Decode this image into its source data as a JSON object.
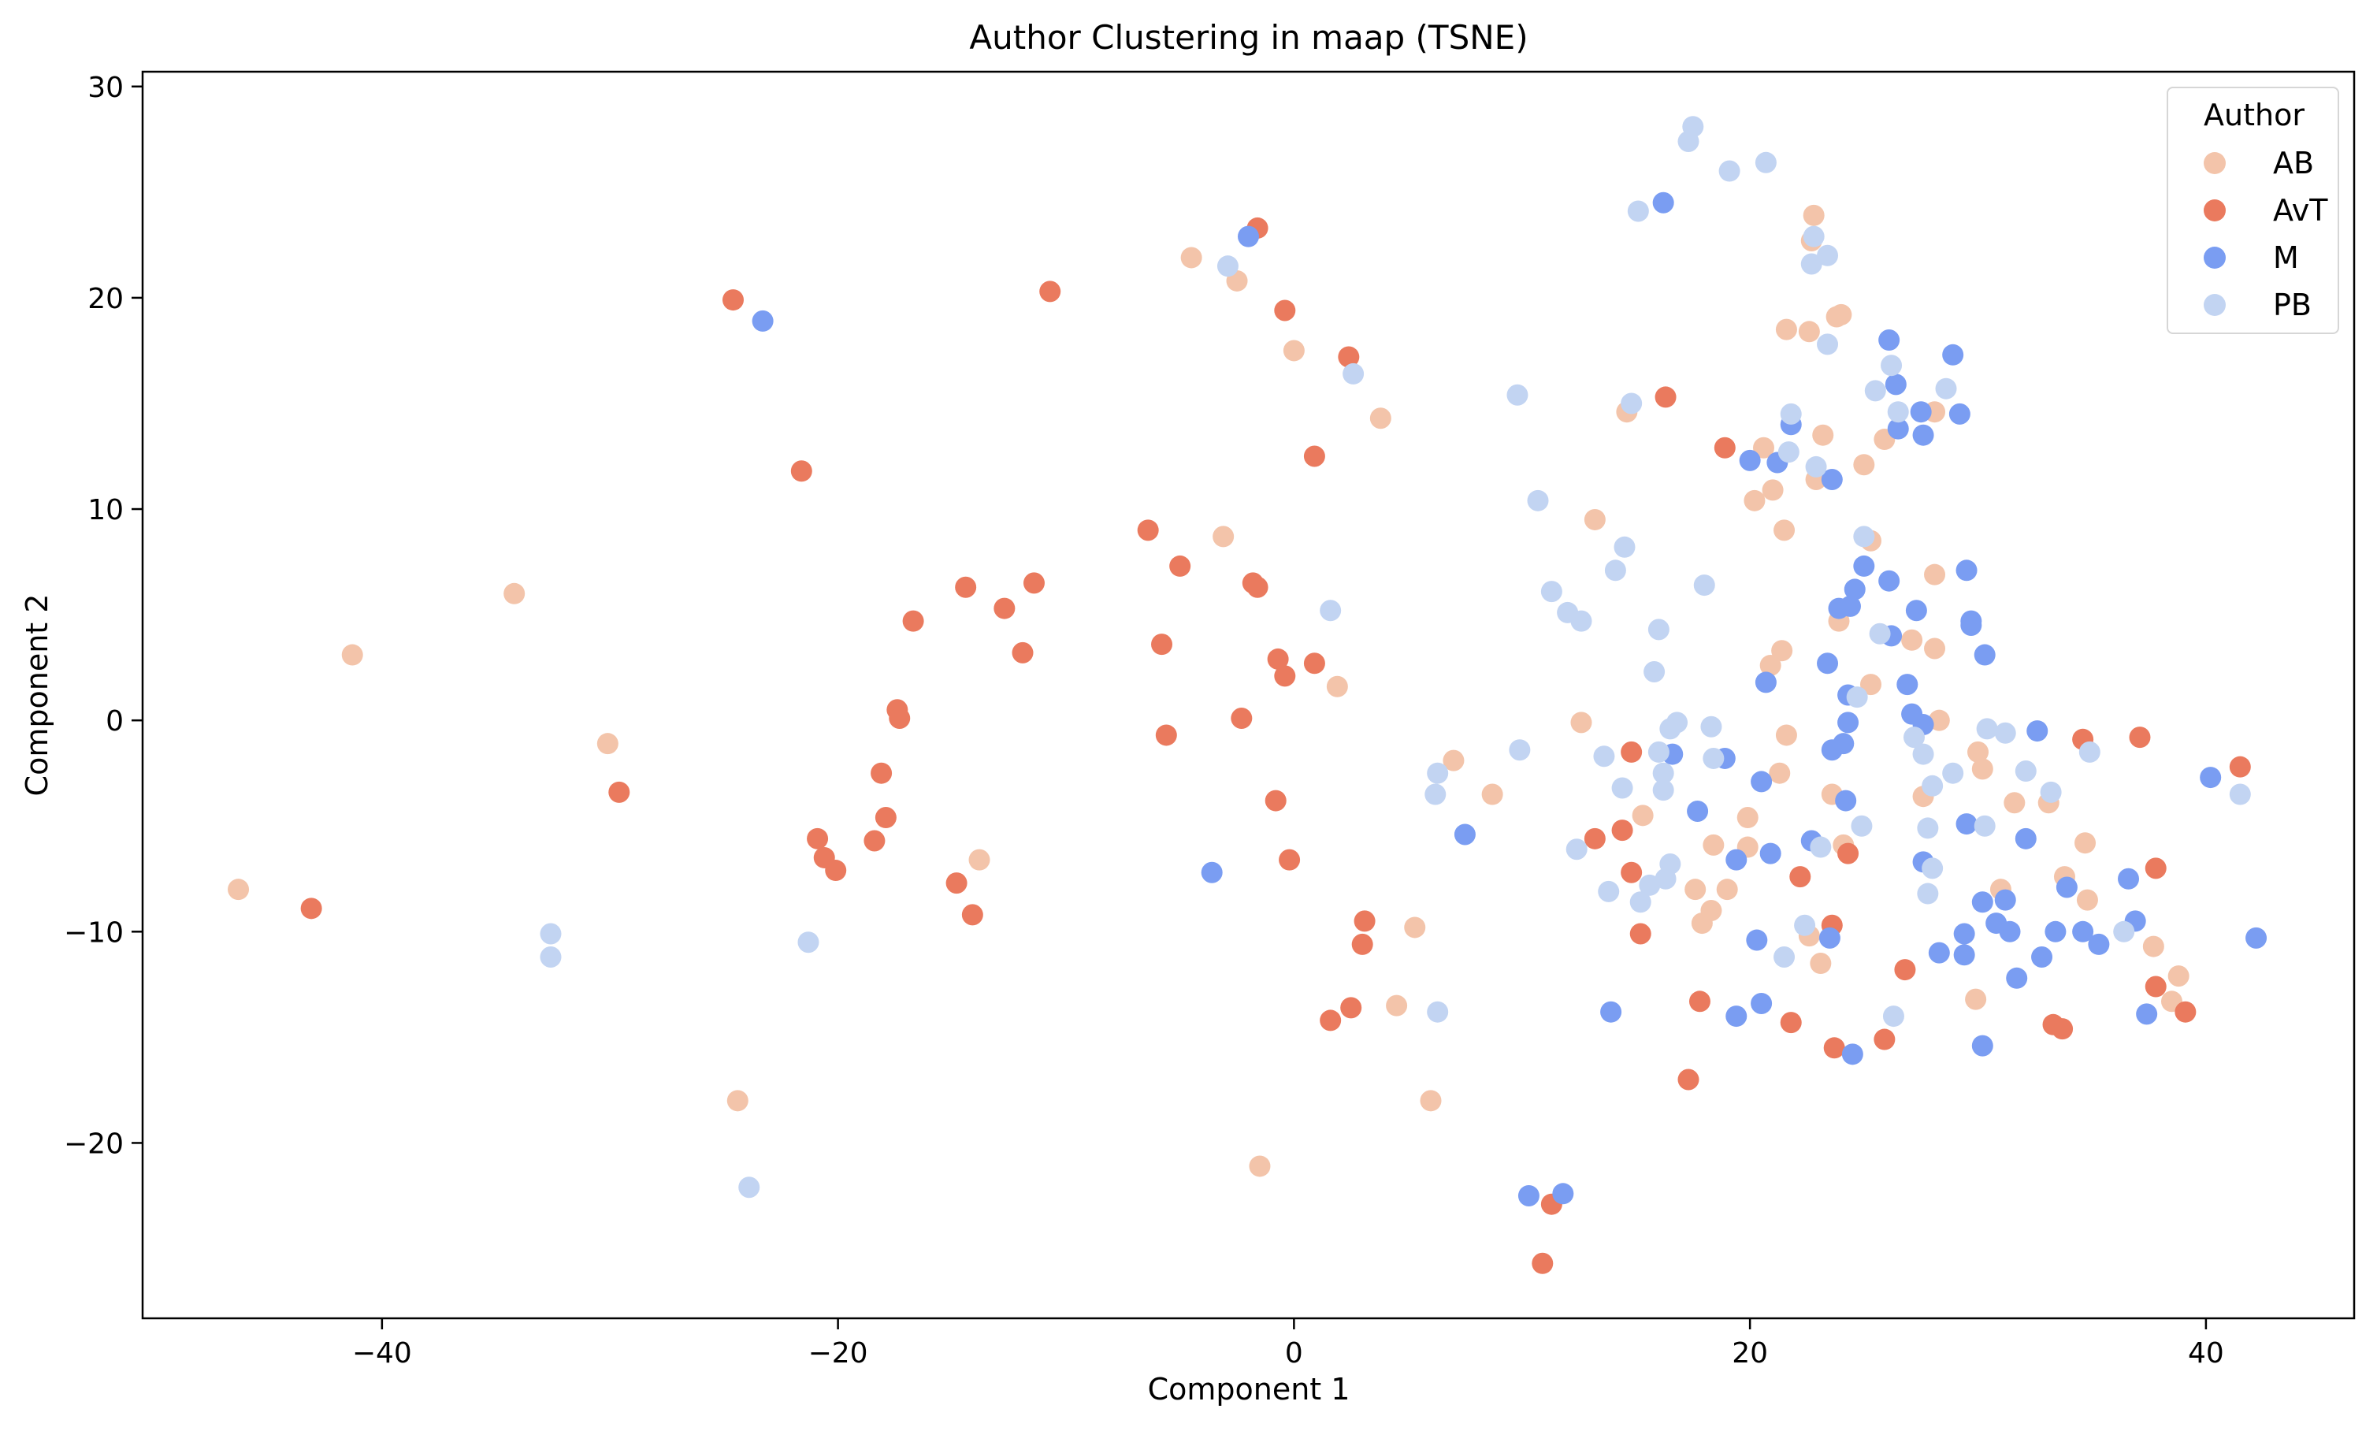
{
  "chart_data": {
    "type": "scatter",
    "title": "Author Clustering in maap (TSNE)",
    "xlabel": "Component 1",
    "ylabel": "Component 2",
    "xlim": [
      -50.5,
      46.5
    ],
    "ylim": [
      -28.3,
      30.7
    ],
    "xticks": [
      -40,
      -20,
      0,
      20,
      40
    ],
    "yticks": [
      -20,
      -10,
      0,
      10,
      20,
      30
    ],
    "grid": false,
    "legend": {
      "title": "Author",
      "position": "top-right"
    },
    "series": [
      {
        "name": "AB",
        "color": "#f3c4aa",
        "points": [
          [
            -46.3,
            -8
          ],
          [
            -41.3,
            3.1
          ],
          [
            -34.2,
            6
          ],
          [
            -30.1,
            -1.1
          ],
          [
            -24.4,
            -18
          ],
          [
            -13.8,
            -6.6
          ],
          [
            -4.5,
            21.9
          ],
          [
            -2.5,
            20.8
          ],
          [
            -3.1,
            8.7
          ],
          [
            0,
            17.5
          ],
          [
            1.9,
            1.6
          ],
          [
            3.8,
            14.3
          ],
          [
            -1.5,
            -21.1
          ],
          [
            4.5,
            -13.5
          ],
          [
            5.3,
            -9.8
          ],
          [
            6,
            -18
          ],
          [
            7,
            -1.9
          ],
          [
            8.7,
            -3.5
          ],
          [
            12.6,
            -0.1
          ],
          [
            13.2,
            9.5
          ],
          [
            14.6,
            14.6
          ],
          [
            15.3,
            -4.5
          ],
          [
            18.4,
            -5.9
          ],
          [
            17.6,
            -8
          ],
          [
            17.9,
            -9.6
          ],
          [
            18.3,
            -9
          ],
          [
            19,
            -8
          ],
          [
            19.9,
            -4.6
          ],
          [
            19.9,
            -6
          ],
          [
            20.2,
            10.4
          ],
          [
            20.6,
            12.9
          ],
          [
            20.9,
            2.6
          ],
          [
            21,
            10.9
          ],
          [
            21.3,
            -2.5
          ],
          [
            21.4,
            3.3
          ],
          [
            21.5,
            9
          ],
          [
            21.6,
            -0.7
          ],
          [
            21.6,
            18.5
          ],
          [
            22.6,
            18.4
          ],
          [
            22.7,
            22.7
          ],
          [
            22.8,
            23.9
          ],
          [
            22.9,
            11.4
          ],
          [
            22.6,
            -10.2
          ],
          [
            23.2,
            13.5
          ],
          [
            23.1,
            -11.5
          ],
          [
            23.8,
            19.1
          ],
          [
            24,
            19.2
          ],
          [
            23.9,
            4.7
          ],
          [
            23.6,
            -3.5
          ],
          [
            24.1,
            -5.9
          ],
          [
            25,
            12.1
          ],
          [
            25.3,
            8.5
          ],
          [
            25.3,
            1.7
          ],
          [
            25.9,
            13.3
          ],
          [
            27.1,
            3.8
          ],
          [
            27.6,
            -3.6
          ],
          [
            28.1,
            3.4
          ],
          [
            28.1,
            6.9
          ],
          [
            28.1,
            14.6
          ],
          [
            28.3,
            0
          ],
          [
            29.9,
            -13.2
          ],
          [
            30,
            -1.5
          ],
          [
            30.2,
            -2.3
          ],
          [
            31,
            -8
          ],
          [
            31.6,
            -3.9
          ],
          [
            33.1,
            -3.9
          ],
          [
            33.8,
            -7.4
          ],
          [
            34.7,
            -5.8
          ],
          [
            34.8,
            -8.5
          ],
          [
            37.7,
            -10.7
          ],
          [
            38.5,
            -13.3
          ],
          [
            38.8,
            -12.1
          ]
        ]
      },
      {
        "name": "AvT",
        "color": "#ea7a5e",
        "points": [
          [
            -43.1,
            -8.9
          ],
          [
            -29.6,
            -3.4
          ],
          [
            -24.6,
            19.9
          ],
          [
            -21.6,
            11.8
          ],
          [
            -20.9,
            -5.6
          ],
          [
            -20.6,
            -6.5
          ],
          [
            -20.1,
            -7.1
          ],
          [
            -18.4,
            -5.7
          ],
          [
            -18.1,
            -2.5
          ],
          [
            -17.9,
            -4.6
          ],
          [
            -17.4,
            0.5
          ],
          [
            -17.3,
            0.1
          ],
          [
            -16.7,
            4.7
          ],
          [
            -14.8,
            -7.7
          ],
          [
            -14.4,
            6.3
          ],
          [
            -14.1,
            -9.2
          ],
          [
            -12.7,
            5.3
          ],
          [
            -11.9,
            3.2
          ],
          [
            -11.4,
            6.5
          ],
          [
            -10.7,
            20.3
          ],
          [
            -6.4,
            9
          ],
          [
            -5.8,
            3.6
          ],
          [
            -5.6,
            -0.7
          ],
          [
            -5,
            7.3
          ],
          [
            -2.3,
            0.1
          ],
          [
            -1.8,
            6.5
          ],
          [
            -1.6,
            6.3
          ],
          [
            -1.6,
            23.3
          ],
          [
            -0.8,
            -3.8
          ],
          [
            -0.7,
            2.9
          ],
          [
            -0.4,
            2.1
          ],
          [
            -0.4,
            19.4
          ],
          [
            -0.2,
            -6.6
          ],
          [
            0.9,
            2.7
          ],
          [
            0.9,
            12.5
          ],
          [
            1.6,
            -14.2
          ],
          [
            2.4,
            17.2
          ],
          [
            2.5,
            -13.6
          ],
          [
            3.1,
            -9.5
          ],
          [
            3,
            -10.6
          ],
          [
            11.3,
            -22.9
          ],
          [
            10.9,
            -25.7
          ],
          [
            13.2,
            -5.6
          ],
          [
            14.4,
            -5.2
          ],
          [
            14.8,
            -1.5
          ],
          [
            14.8,
            -7.2
          ],
          [
            15.2,
            -10.1
          ],
          [
            16.3,
            15.3
          ],
          [
            17.3,
            -17
          ],
          [
            17.8,
            -13.3
          ],
          [
            18.9,
            12.9
          ],
          [
            21.8,
            -14.3
          ],
          [
            22.2,
            -7.4
          ],
          [
            23.6,
            -9.7
          ],
          [
            23.7,
            -15.5
          ],
          [
            24.3,
            -6.3
          ],
          [
            25.9,
            -15.1
          ],
          [
            26.8,
            -11.8
          ],
          [
            33.3,
            -14.4
          ],
          [
            33.7,
            -14.6
          ],
          [
            34.6,
            -0.9
          ],
          [
            37.1,
            -0.8
          ],
          [
            37.8,
            -12.6
          ],
          [
            37.8,
            -7
          ],
          [
            39.1,
            -13.8
          ],
          [
            41.5,
            -2.2
          ]
        ]
      },
      {
        "name": "M",
        "color": "#7a9df2",
        "points": [
          [
            -23.3,
            18.9
          ],
          [
            -2,
            22.9
          ],
          [
            -3.6,
            -7.2
          ],
          [
            7.5,
            -5.4
          ],
          [
            10.3,
            -22.5
          ],
          [
            11.8,
            -22.4
          ],
          [
            13.9,
            -13.8
          ],
          [
            16.2,
            24.5
          ],
          [
            16.6,
            -1.6
          ],
          [
            17.7,
            -4.3
          ],
          [
            18.9,
            -1.8
          ],
          [
            19.4,
            -6.6
          ],
          [
            19.4,
            -14
          ],
          [
            20,
            12.3
          ],
          [
            20.3,
            -10.4
          ],
          [
            20.5,
            -13.4
          ],
          [
            20.5,
            -2.9
          ],
          [
            20.7,
            1.8
          ],
          [
            20.9,
            -6.3
          ],
          [
            21.2,
            12.2
          ],
          [
            21.8,
            14
          ],
          [
            22.7,
            -5.7
          ],
          [
            23.4,
            2.7
          ],
          [
            23.5,
            -10.3
          ],
          [
            23.6,
            11.4
          ],
          [
            23.6,
            -1.4
          ],
          [
            23.9,
            5.3
          ],
          [
            24.1,
            -1.1
          ],
          [
            24.2,
            -3.8
          ],
          [
            24.3,
            1.2
          ],
          [
            24.3,
            -0.1
          ],
          [
            24.4,
            5.4
          ],
          [
            24.6,
            6.2
          ],
          [
            24.5,
            -15.8
          ],
          [
            25,
            7.3
          ],
          [
            26.1,
            18
          ],
          [
            26.1,
            6.6
          ],
          [
            26.2,
            4
          ],
          [
            26.4,
            15.9
          ],
          [
            26.5,
            13.8
          ],
          [
            26.9,
            1.7
          ],
          [
            27.1,
            0.3
          ],
          [
            27.3,
            5.2
          ],
          [
            27.5,
            14.6
          ],
          [
            27.6,
            13.5
          ],
          [
            27.6,
            -0.2
          ],
          [
            27.6,
            -6.7
          ],
          [
            28.3,
            -11
          ],
          [
            28.9,
            17.3
          ],
          [
            29.2,
            14.5
          ],
          [
            29.4,
            -11.1
          ],
          [
            29.5,
            7.1
          ],
          [
            29.5,
            -4.9
          ],
          [
            29.7,
            4.7
          ],
          [
            29.7,
            4.5
          ],
          [
            29.4,
            -10.1
          ],
          [
            30.2,
            -8.6
          ],
          [
            30.2,
            -15.4
          ],
          [
            30.3,
            3.1
          ],
          [
            30.8,
            -9.6
          ],
          [
            31.2,
            -8.5
          ],
          [
            31.4,
            -10
          ],
          [
            31.7,
            -12.2
          ],
          [
            32.1,
            -5.6
          ],
          [
            32.6,
            -0.5
          ],
          [
            32.8,
            -11.2
          ],
          [
            33.4,
            -10
          ],
          [
            33.9,
            -7.9
          ],
          [
            34.6,
            -10
          ],
          [
            35.3,
            -10.6
          ],
          [
            36.6,
            -7.5
          ],
          [
            36.9,
            -9.5
          ],
          [
            37.4,
            -13.9
          ],
          [
            40.2,
            -2.7
          ],
          [
            42.2,
            -10.3
          ]
        ]
      },
      {
        "name": "PB",
        "color": "#c2d4f2",
        "points": [
          [
            -32.6,
            -10.1
          ],
          [
            -32.6,
            -11.2
          ],
          [
            -21.3,
            -10.5
          ],
          [
            -23.9,
            -22.1
          ],
          [
            -2.9,
            21.5
          ],
          [
            1.6,
            5.2
          ],
          [
            2.6,
            16.4
          ],
          [
            6.2,
            -3.5
          ],
          [
            6.3,
            -2.5
          ],
          [
            6.3,
            -13.8
          ],
          [
            9.8,
            15.4
          ],
          [
            9.9,
            -1.4
          ],
          [
            10.7,
            10.4
          ],
          [
            11.3,
            6.1
          ],
          [
            12,
            5.1
          ],
          [
            12.6,
            4.7
          ],
          [
            12.4,
            -6.1
          ],
          [
            13.6,
            -1.7
          ],
          [
            13.8,
            -8.1
          ],
          [
            14.1,
            7.1
          ],
          [
            14.4,
            -3.2
          ],
          [
            14.5,
            8.2
          ],
          [
            14.8,
            15
          ],
          [
            15.1,
            24.1
          ],
          [
            15.2,
            -8.6
          ],
          [
            15.6,
            -7.8
          ],
          [
            15.8,
            2.3
          ],
          [
            16,
            4.3
          ],
          [
            16,
            -1.5
          ],
          [
            16.2,
            -2.5
          ],
          [
            16.2,
            -3.3
          ],
          [
            16.3,
            -7.5
          ],
          [
            16.5,
            -6.8
          ],
          [
            16.5,
            -0.4
          ],
          [
            16.8,
            -0.1
          ],
          [
            17.3,
            27.4
          ],
          [
            17.5,
            28.1
          ],
          [
            18,
            6.4
          ],
          [
            18.3,
            -0.3
          ],
          [
            18.4,
            -1.8
          ],
          [
            19.1,
            26
          ],
          [
            20.7,
            26.4
          ],
          [
            21.5,
            -11.2
          ],
          [
            21.8,
            14.5
          ],
          [
            21.7,
            12.7
          ],
          [
            22.4,
            -9.7
          ],
          [
            22.7,
            21.6
          ],
          [
            22.8,
            22.9
          ],
          [
            22.9,
            12
          ],
          [
            23.1,
            -6
          ],
          [
            23.4,
            22
          ],
          [
            23.4,
            17.8
          ],
          [
            24.7,
            1.1
          ],
          [
            24.9,
            -5
          ],
          [
            25,
            8.7
          ],
          [
            25.5,
            15.6
          ],
          [
            25.7,
            4.1
          ],
          [
            26.2,
            16.8
          ],
          [
            26.3,
            -14
          ],
          [
            26.5,
            14.6
          ],
          [
            27.2,
            -0.8
          ],
          [
            27.6,
            -1.6
          ],
          [
            27.8,
            -5.1
          ],
          [
            27.8,
            -8.2
          ],
          [
            28,
            -3.1
          ],
          [
            28,
            -7
          ],
          [
            28.6,
            15.7
          ],
          [
            28.9,
            -2.5
          ],
          [
            30.3,
            -5
          ],
          [
            30.4,
            -0.4
          ],
          [
            31.2,
            -0.6
          ],
          [
            32.1,
            -2.4
          ],
          [
            33.2,
            -3.4
          ],
          [
            34.9,
            -1.5
          ],
          [
            36.4,
            -10
          ],
          [
            41.5,
            -3.5
          ]
        ]
      }
    ]
  }
}
